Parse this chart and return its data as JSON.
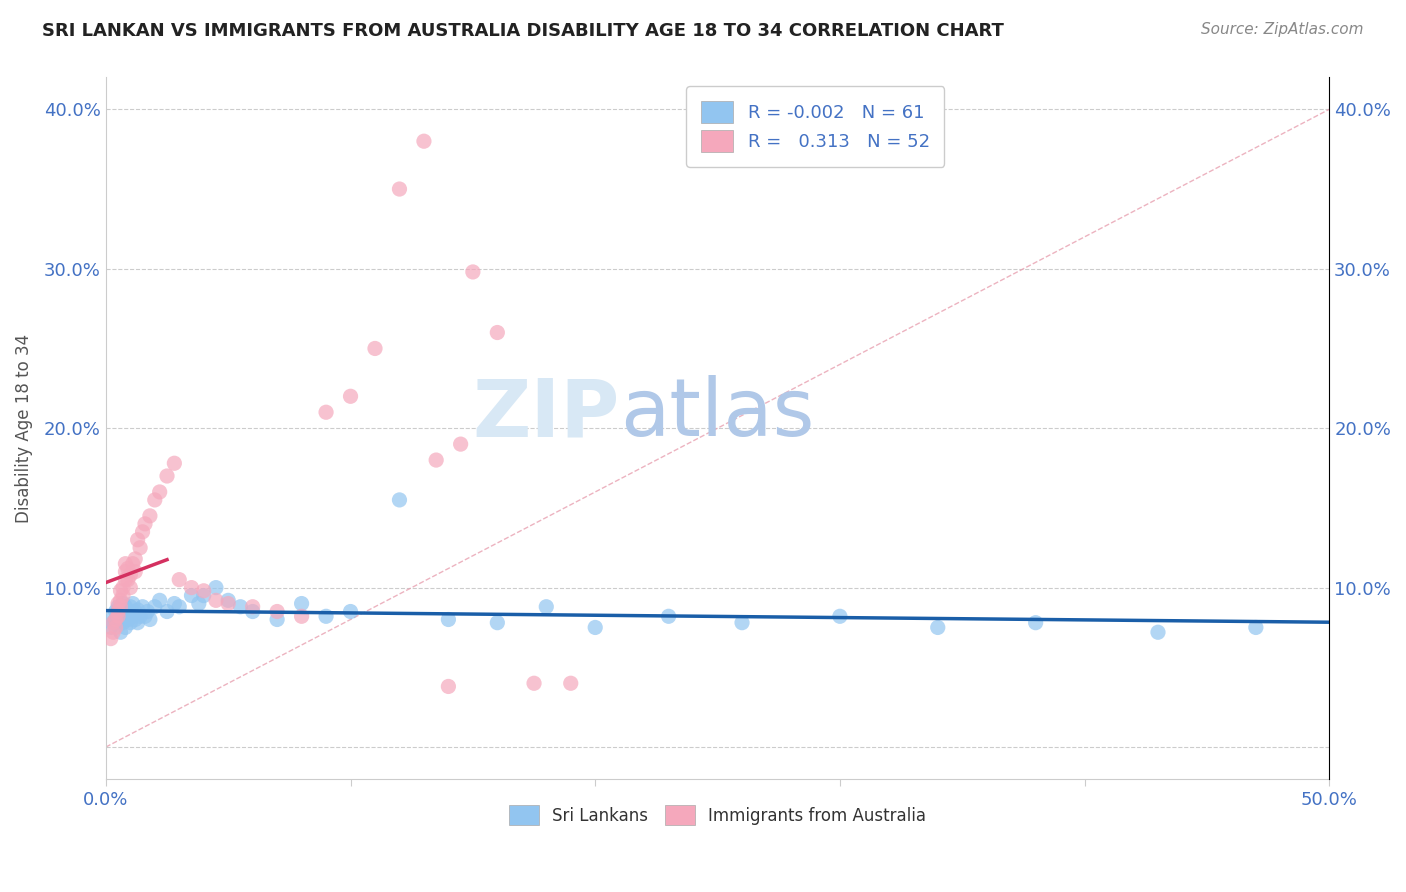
{
  "title": "SRI LANKAN VS IMMIGRANTS FROM AUSTRALIA DISABILITY AGE 18 TO 34 CORRELATION CHART",
  "source": "Source: ZipAtlas.com",
  "ylabel": "Disability Age 18 to 34",
  "xlim": [
    0,
    0.5
  ],
  "ylim": [
    -0.02,
    0.42
  ],
  "xticks": [
    0.0,
    0.1,
    0.2,
    0.3,
    0.4,
    0.5
  ],
  "xticklabels": [
    "0.0%",
    "",
    "",
    "",
    "",
    "50.0%"
  ],
  "yticks": [
    0.0,
    0.1,
    0.2,
    0.3,
    0.4
  ],
  "yticklabels": [
    "",
    "10.0%",
    "20.0%",
    "30.0%",
    "40.0%"
  ],
  "sri_lankan_R": -0.002,
  "sri_lankan_N": 61,
  "australia_R": 0.313,
  "australia_N": 52,
  "blue_color": "#92C5F0",
  "pink_color": "#F5A8BC",
  "blue_line_color": "#1A5EA8",
  "pink_line_color": "#D43060",
  "diag_line_color": "#E8A0B0",
  "watermark_color": "#D8E8F5",
  "sri_lankans_x": [
    0.002,
    0.003,
    0.003,
    0.004,
    0.004,
    0.005,
    0.005,
    0.005,
    0.006,
    0.006,
    0.006,
    0.007,
    0.007,
    0.007,
    0.008,
    0.008,
    0.008,
    0.009,
    0.009,
    0.01,
    0.01,
    0.01,
    0.011,
    0.011,
    0.012,
    0.012,
    0.013,
    0.013,
    0.014,
    0.015,
    0.016,
    0.017,
    0.018,
    0.02,
    0.022,
    0.025,
    0.028,
    0.03,
    0.035,
    0.038,
    0.04,
    0.045,
    0.05,
    0.055,
    0.06,
    0.07,
    0.08,
    0.09,
    0.1,
    0.12,
    0.14,
    0.16,
    0.18,
    0.2,
    0.23,
    0.26,
    0.3,
    0.34,
    0.38,
    0.43,
    0.47
  ],
  "sri_lankans_y": [
    0.075,
    0.082,
    0.078,
    0.08,
    0.085,
    0.078,
    0.082,
    0.088,
    0.072,
    0.08,
    0.086,
    0.078,
    0.085,
    0.09,
    0.075,
    0.082,
    0.088,
    0.08,
    0.085,
    0.082,
    0.078,
    0.088,
    0.082,
    0.09,
    0.08,
    0.085,
    0.078,
    0.086,
    0.082,
    0.088,
    0.082,
    0.085,
    0.08,
    0.088,
    0.092,
    0.085,
    0.09,
    0.088,
    0.095,
    0.09,
    0.095,
    0.1,
    0.092,
    0.088,
    0.085,
    0.08,
    0.09,
    0.082,
    0.085,
    0.155,
    0.08,
    0.078,
    0.088,
    0.075,
    0.082,
    0.078,
    0.082,
    0.075,
    0.078,
    0.072,
    0.075
  ],
  "australia_x": [
    0.002,
    0.003,
    0.003,
    0.004,
    0.004,
    0.005,
    0.005,
    0.005,
    0.006,
    0.006,
    0.006,
    0.007,
    0.007,
    0.008,
    0.008,
    0.008,
    0.009,
    0.009,
    0.01,
    0.01,
    0.011,
    0.012,
    0.012,
    0.013,
    0.014,
    0.015,
    0.016,
    0.018,
    0.02,
    0.022,
    0.025,
    0.028,
    0.03,
    0.035,
    0.04,
    0.045,
    0.05,
    0.06,
    0.07,
    0.08,
    0.09,
    0.1,
    0.11,
    0.12,
    0.13,
    0.14,
    0.15,
    0.16,
    0.175,
    0.19,
    0.135,
    0.145
  ],
  "australia_y": [
    0.068,
    0.072,
    0.078,
    0.075,
    0.08,
    0.082,
    0.085,
    0.09,
    0.088,
    0.092,
    0.098,
    0.095,
    0.1,
    0.105,
    0.11,
    0.115,
    0.105,
    0.112,
    0.1,
    0.108,
    0.115,
    0.11,
    0.118,
    0.13,
    0.125,
    0.135,
    0.14,
    0.145,
    0.155,
    0.16,
    0.17,
    0.178,
    0.105,
    0.1,
    0.098,
    0.092,
    0.09,
    0.088,
    0.085,
    0.082,
    0.21,
    0.22,
    0.25,
    0.35,
    0.38,
    0.038,
    0.298,
    0.26,
    0.04,
    0.04,
    0.18,
    0.19
  ]
}
